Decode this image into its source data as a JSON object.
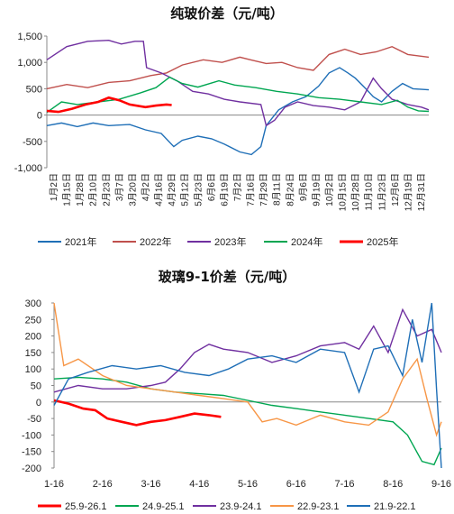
{
  "chart_data": [
    {
      "type": "line",
      "title": "纯玻价差（元/吨）",
      "xlabel": "",
      "ylabel": "",
      "ylim": [
        -1000,
        1500
      ],
      "yticks": [
        "1,500",
        "1,000",
        "500",
        "0",
        "-500",
        "-1,000"
      ],
      "grid": false,
      "legend_position": "bottom",
      "x_tick_labels": [
        "1月2日",
        "1月15日",
        "1月28日",
        "2月10日",
        "2月23日",
        "3月7日",
        "3月20日",
        "4月2日",
        "4月16日",
        "4月29日",
        "5月12日",
        "5月23日",
        "6月6日",
        "6月19日",
        "7月2日",
        "7月16日",
        "7月29日",
        "8月11日",
        "8月24日",
        "9月6日",
        "9月19日",
        "10月2日",
        "10月15日",
        "10月28日",
        "11月10日",
        "11月23日",
        "12月6日",
        "12月19日",
        "12月31日"
      ],
      "x_range_days": [
        1,
        365
      ],
      "series": [
        {
          "name": "2021年",
          "color": "#1f6fb7",
          "points": [
            [
              1,
              -200
            ],
            [
              15,
              -150
            ],
            [
              30,
              -220
            ],
            [
              45,
              -150
            ],
            [
              60,
              -200
            ],
            [
              80,
              -180
            ],
            [
              95,
              -280
            ],
            [
              110,
              -350
            ],
            [
              122,
              -600
            ],
            [
              130,
              -480
            ],
            [
              145,
              -400
            ],
            [
              158,
              -450
            ],
            [
              170,
              -550
            ],
            [
              185,
              -700
            ],
            [
              196,
              -750
            ],
            [
              205,
              -600
            ],
            [
              210,
              -200
            ],
            [
              222,
              100
            ],
            [
              235,
              250
            ],
            [
              248,
              350
            ],
            [
              260,
              550
            ],
            [
              270,
              800
            ],
            [
              280,
              900
            ],
            [
              288,
              800
            ],
            [
              295,
              700
            ],
            [
              305,
              500
            ],
            [
              312,
              350
            ],
            [
              320,
              250
            ],
            [
              330,
              450
            ],
            [
              340,
              600
            ],
            [
              350,
              500
            ],
            [
              365,
              480
            ]
          ]
        },
        {
          "name": "2022年",
          "color": "#c0504d",
          "points": [
            [
              1,
              500
            ],
            [
              20,
              580
            ],
            [
              40,
              520
            ],
            [
              60,
              620
            ],
            [
              80,
              650
            ],
            [
              100,
              750
            ],
            [
              115,
              800
            ],
            [
              130,
              950
            ],
            [
              150,
              1050
            ],
            [
              168,
              1000
            ],
            [
              185,
              1100
            ],
            [
              195,
              1050
            ],
            [
              210,
              980
            ],
            [
              225,
              1000
            ],
            [
              240,
              900
            ],
            [
              255,
              850
            ],
            [
              270,
              1150
            ],
            [
              285,
              1250
            ],
            [
              300,
              1150
            ],
            [
              315,
              1200
            ],
            [
              330,
              1300
            ],
            [
              345,
              1150
            ],
            [
              365,
              1100
            ]
          ]
        },
        {
          "name": "2023年",
          "color": "#7030a0",
          "points": [
            [
              1,
              1050
            ],
            [
              20,
              1300
            ],
            [
              40,
              1400
            ],
            [
              60,
              1420
            ],
            [
              72,
              1350
            ],
            [
              85,
              1400
            ],
            [
              93,
              1400
            ],
            [
              96,
              900
            ],
            [
              110,
              800
            ],
            [
              125,
              650
            ],
            [
              140,
              450
            ],
            [
              155,
              400
            ],
            [
              170,
              300
            ],
            [
              185,
              250
            ],
            [
              205,
              200
            ],
            [
              210,
              -200
            ],
            [
              218,
              -100
            ],
            [
              228,
              150
            ],
            [
              240,
              250
            ],
            [
              255,
              180
            ],
            [
              270,
              150
            ],
            [
              285,
              100
            ],
            [
              300,
              250
            ],
            [
              312,
              700
            ],
            [
              320,
              500
            ],
            [
              330,
              300
            ],
            [
              345,
              200
            ],
            [
              358,
              150
            ],
            [
              365,
              100
            ]
          ]
        },
        {
          "name": "2024年",
          "color": "#00a651",
          "points": [
            [
              1,
              50
            ],
            [
              15,
              250
            ],
            [
              30,
              200
            ],
            [
              50,
              250
            ],
            [
              70,
              300
            ],
            [
              90,
              420
            ],
            [
              105,
              520
            ],
            [
              118,
              720
            ],
            [
              130,
              600
            ],
            [
              145,
              530
            ],
            [
              165,
              650
            ],
            [
              180,
              570
            ],
            [
              200,
              520
            ],
            [
              220,
              450
            ],
            [
              240,
              400
            ],
            [
              260,
              330
            ],
            [
              280,
              300
            ],
            [
              300,
              250
            ],
            [
              320,
              200
            ],
            [
              335,
              280
            ],
            [
              345,
              150
            ],
            [
              355,
              80
            ],
            [
              365,
              70
            ]
          ]
        },
        {
          "name": "2025年",
          "color": "#ff0000",
          "points": [
            [
              1,
              80
            ],
            [
              12,
              60
            ],
            [
              25,
              120
            ],
            [
              38,
              200
            ],
            [
              50,
              250
            ],
            [
              60,
              330
            ],
            [
              70,
              280
            ],
            [
              80,
              200
            ],
            [
              95,
              150
            ],
            [
              105,
              180
            ],
            [
              115,
              200
            ],
            [
              120,
              190
            ]
          ]
        }
      ]
    },
    {
      "type": "line",
      "title": "玻璃9-1价差（元/吨）",
      "xlabel": "",
      "ylabel": "",
      "ylim": [
        -200,
        300
      ],
      "yticks": [
        "300",
        "250",
        "200",
        "150",
        "100",
        "50",
        "0",
        "-50",
        "-100",
        "-150",
        "-200"
      ],
      "grid": false,
      "legend_position": "bottom",
      "x_tick_labels": [
        "1-16",
        "2-16",
        "3-16",
        "4-16",
        "5-16",
        "6-16",
        "7-16",
        "8-16",
        "9-16"
      ],
      "x_range_months": [
        1,
        9
      ],
      "series": [
        {
          "name": "25.9-26.1",
          "color": "#ff0000",
          "points": [
            [
              1,
              5
            ],
            [
              1.3,
              -5
            ],
            [
              1.6,
              -20
            ],
            [
              1.85,
              -25
            ],
            [
              2.1,
              -50
            ],
            [
              2.4,
              -60
            ],
            [
              2.7,
              -70
            ],
            [
              3.0,
              -60
            ],
            [
              3.3,
              -55
            ],
            [
              3.6,
              -45
            ],
            [
              3.9,
              -35
            ],
            [
              4.2,
              -40
            ],
            [
              4.45,
              -45
            ]
          ]
        },
        {
          "name": "24.9-25.1",
          "color": "#00a651",
          "points": [
            [
              1,
              70
            ],
            [
              1.5,
              75
            ],
            [
              2.0,
              70
            ],
            [
              2.5,
              60
            ],
            [
              3.0,
              40
            ],
            [
              3.5,
              30
            ],
            [
              4.0,
              25
            ],
            [
              4.5,
              20
            ],
            [
              5.0,
              5
            ],
            [
              5.5,
              -10
            ],
            [
              6.0,
              -20
            ],
            [
              6.5,
              -30
            ],
            [
              7.0,
              -40
            ],
            [
              7.5,
              -50
            ],
            [
              8.0,
              -60
            ],
            [
              8.3,
              -100
            ],
            [
              8.6,
              -180
            ],
            [
              8.85,
              -190
            ],
            [
              9.0,
              -140
            ]
          ]
        },
        {
          "name": "23.9-24.1",
          "color": "#7030a0",
          "points": [
            [
              1,
              30
            ],
            [
              1.5,
              50
            ],
            [
              2.0,
              40
            ],
            [
              2.5,
              40
            ],
            [
              3.0,
              50
            ],
            [
              3.3,
              60
            ],
            [
              3.6,
              100
            ],
            [
              3.9,
              150
            ],
            [
              4.2,
              175
            ],
            [
              4.5,
              160
            ],
            [
              5.0,
              150
            ],
            [
              5.5,
              120
            ],
            [
              6.0,
              140
            ],
            [
              6.5,
              170
            ],
            [
              7.0,
              180
            ],
            [
              7.3,
              160
            ],
            [
              7.6,
              230
            ],
            [
              7.9,
              150
            ],
            [
              8.2,
              280
            ],
            [
              8.5,
              200
            ],
            [
              8.8,
              220
            ],
            [
              9.0,
              150
            ]
          ]
        },
        {
          "name": "22.9-23.1",
          "color": "#f79646",
          "points": [
            [
              1,
              300
            ],
            [
              1.2,
              110
            ],
            [
              1.5,
              130
            ],
            [
              2.0,
              80
            ],
            [
              2.5,
              50
            ],
            [
              3.0,
              40
            ],
            [
              3.5,
              30
            ],
            [
              4.0,
              20
            ],
            [
              4.5,
              10
            ],
            [
              5.0,
              0
            ],
            [
              5.3,
              -60
            ],
            [
              5.6,
              -50
            ],
            [
              6.0,
              -70
            ],
            [
              6.5,
              -40
            ],
            [
              7.0,
              -60
            ],
            [
              7.5,
              -70
            ],
            [
              7.9,
              -30
            ],
            [
              8.2,
              70
            ],
            [
              8.5,
              130
            ],
            [
              8.7,
              10
            ],
            [
              8.9,
              -100
            ],
            [
              9.0,
              -60
            ]
          ]
        },
        {
          "name": "21.9-22.1",
          "color": "#1f6fb7",
          "points": [
            [
              1,
              -10
            ],
            [
              1.3,
              70
            ],
            [
              1.7,
              90
            ],
            [
              2.2,
              110
            ],
            [
              2.7,
              100
            ],
            [
              3.2,
              110
            ],
            [
              3.7,
              90
            ],
            [
              4.2,
              80
            ],
            [
              4.6,
              100
            ],
            [
              5.0,
              130
            ],
            [
              5.5,
              140
            ],
            [
              6.0,
              120
            ],
            [
              6.5,
              160
            ],
            [
              7.0,
              150
            ],
            [
              7.3,
              30
            ],
            [
              7.6,
              160
            ],
            [
              7.9,
              170
            ],
            [
              8.2,
              80
            ],
            [
              8.4,
              250
            ],
            [
              8.6,
              120
            ],
            [
              8.8,
              300
            ],
            [
              8.9,
              40
            ],
            [
              9.0,
              -200
            ]
          ]
        }
      ]
    }
  ]
}
